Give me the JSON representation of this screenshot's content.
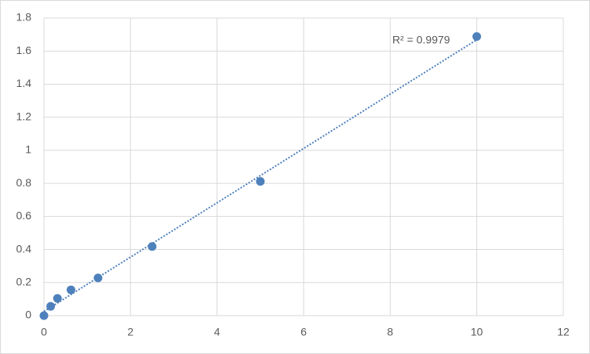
{
  "chart_data": {
    "type": "scatter",
    "annotation": "R² = 0.9979",
    "series": [
      {
        "color": "#4e80bc",
        "x": [
          0,
          0.156,
          0.3125,
          0.625,
          1.25,
          2.5,
          5,
          10
        ],
        "values": [
          0,
          0.056,
          0.104,
          0.156,
          0.228,
          0.418,
          0.812,
          1.688
        ]
      }
    ],
    "trendline": "linear",
    "xlim": [
      0,
      12
    ],
    "xticks": [
      0,
      2,
      4,
      6,
      8,
      10,
      12
    ],
    "ylim": [
      0,
      1.8
    ],
    "yticks": [
      0,
      0.2,
      0.4,
      0.6,
      0.8,
      1,
      1.2,
      1.4,
      1.6,
      1.8
    ],
    "grid": true
  }
}
